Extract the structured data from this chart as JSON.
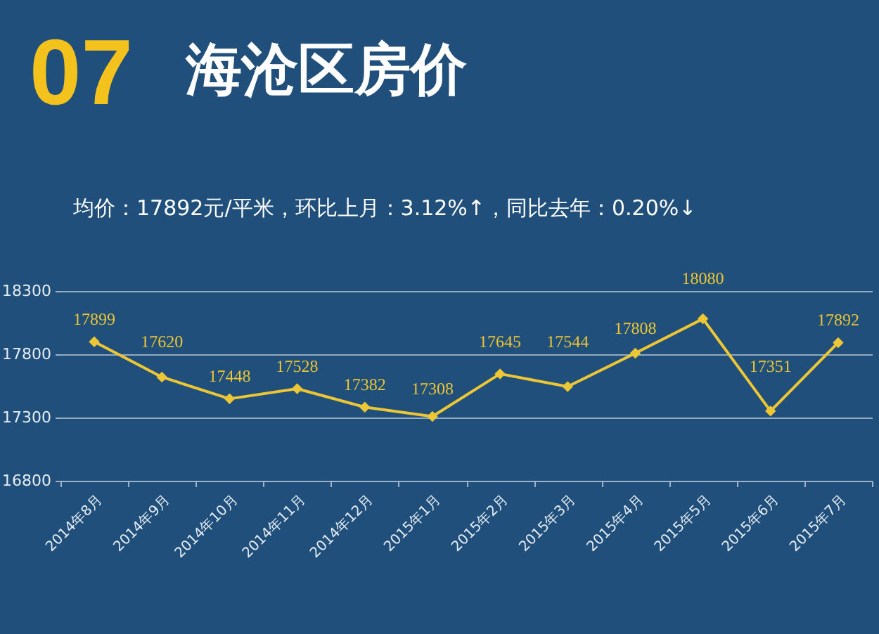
{
  "chart_data": {
    "type": "line",
    "title": "07 海沧区房价",
    "subtitle": "均价：17892元/平米，环比上月：3.12%↑，同比去年：0.20%↓",
    "categories": [
      "2014年8月",
      "2014年9月",
      "2014年10月",
      "2014年11月",
      "2014年12月",
      "2015年1月",
      "2015年2月",
      "2015年3月",
      "2015年4月",
      "2015年5月",
      "2015年6月",
      "2015年7月"
    ],
    "series": [
      {
        "color": "#ecc634",
        "values": [
          17899,
          17620,
          17448,
          17528,
          17382,
          17308,
          17645,
          17544,
          17808,
          18080,
          17351,
          17892
        ]
      }
    ],
    "ylim": [
      16800,
      18300
    ],
    "yticks": [
      16800,
      17300,
      17800,
      18300
    ],
    "grid": "y",
    "marker": "diamond",
    "line_style": "solid",
    "data_labels": true
  }
}
